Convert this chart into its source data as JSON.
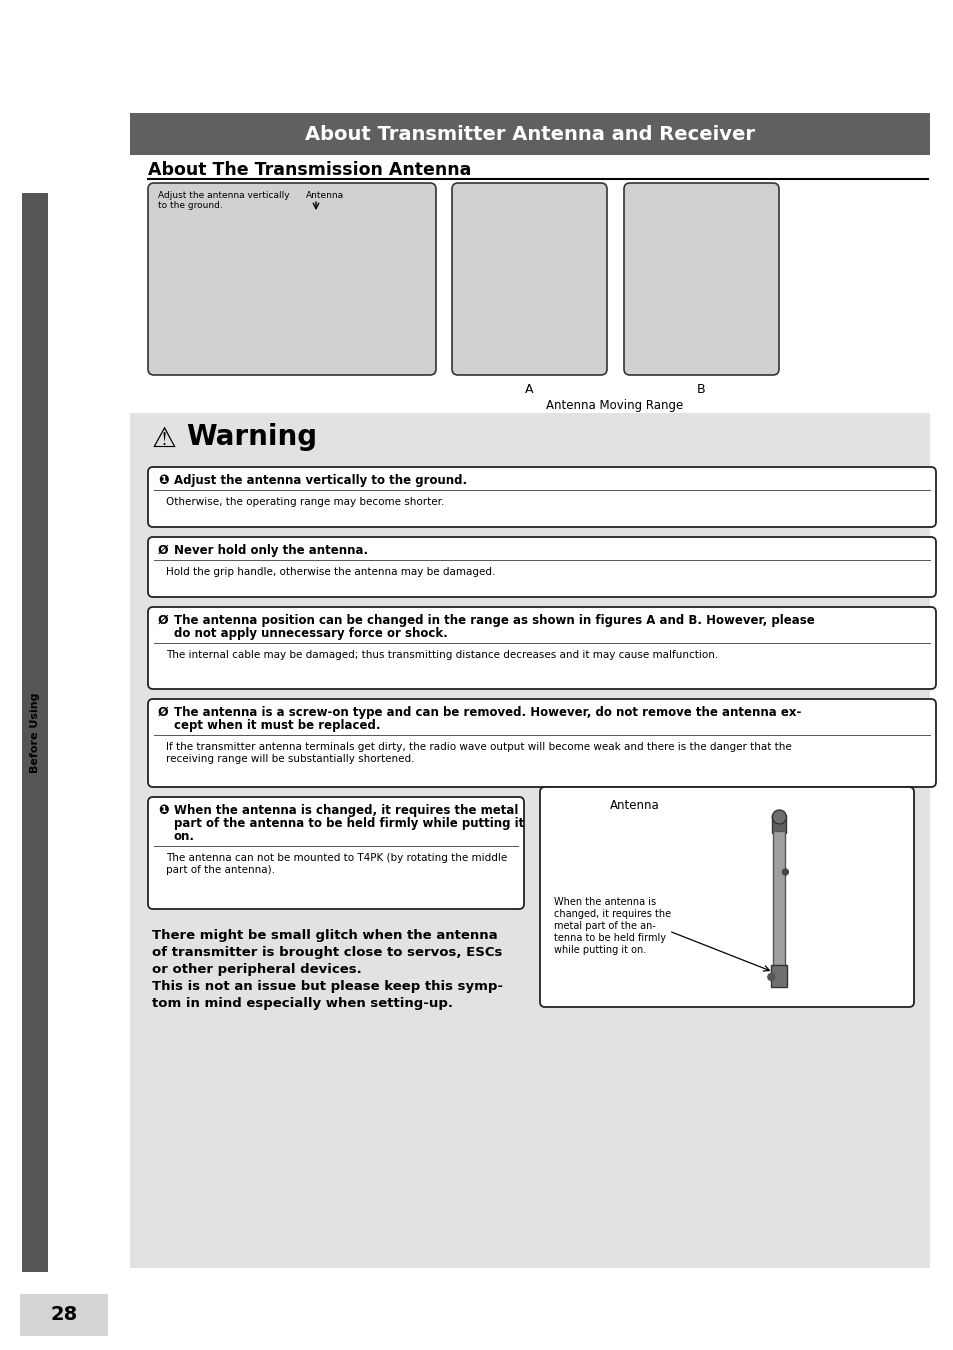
{
  "page_bg": "#ffffff",
  "main_title": "About Transmitter Antenna and Receiver",
  "main_title_bg": "#606060",
  "main_title_color": "#ffffff",
  "section_title": "About The Transmission Antenna",
  "sidebar_text": "Before Using",
  "sidebar_bg": "#555555",
  "page_number": "28",
  "warning_title": "Warning",
  "warning_bg": "#e4e4e4",
  "note1_icon": "❶",
  "note1_header": "Adjust the antenna vertically to the ground.",
  "note1_body": "Otherwise, the operating range may become shorter.",
  "note2_icon": "Ø",
  "note2_header": "Never hold only the antenna.",
  "note2_body": "Hold the grip handle, otherwise the antenna may be damaged.",
  "note3_icon": "Ø",
  "note3_header_l1": "The antenna position can be changed in the range as shown in figures A and B. However, please",
  "note3_header_l2": "do not apply unnecessary force or shock.",
  "note3_body": "The internal cable may be damaged; thus transmitting distance decreases and it may cause malfunction.",
  "note4_icon": "Ø",
  "note4_header_l1": "The antenna is a screw-on type and can be removed. However, do not remove the antenna ex-",
  "note4_header_l2": "cept when it must be replaced.",
  "note4_body_l1": "If the transmitter antenna terminals get dirty, the radio wave output will become weak and there is the danger that the",
  "note4_body_l2": "receiving range will be substantially shortened.",
  "note5_icon": "❶",
  "note5_header_l1": "When the antenna is changed, it requires the metal",
  "note5_header_l2": "part of the antenna to be held firmly while putting it",
  "note5_header_l3": "on.",
  "note5_body_l1": "The antenna can not be mounted to T4PK (by rotating the middle",
  "note5_body_l2": "part of the antenna).",
  "antenna_label": "Antenna",
  "antenna_subcaption_l1": "When the antenna is",
  "antenna_subcaption_l2": "changed, it requires the",
  "antenna_subcaption_l3": "metal part of the an-",
  "antenna_subcaption_l4": "tenna to be held firmly",
  "antenna_subcaption_l5": "while putting it on.",
  "bold_l1": "There might be small glitch when the antenna",
  "bold_l2": "of transmitter is brought close to servos, ESCs",
  "bold_l3": "or other peripheral devices.",
  "bold_l4": "This is not an issue but please keep this symp-",
  "bold_l5": "tom in mind especially when setting-up.",
  "img_caption": "Antenna Moving Range",
  "img_label_a": "A",
  "img_label_b": "B",
  "img_text1_l1": "Adjust the antenna vertically",
  "img_text1_l2": "to the ground.",
  "img_text2": "Antenna"
}
